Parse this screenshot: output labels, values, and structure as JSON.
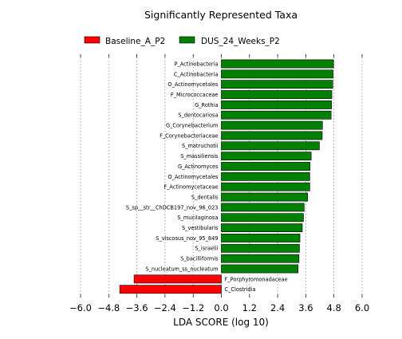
{
  "chart_data": {
    "type": "bar",
    "orientation": "horizontal",
    "title": "Significantly Represented Taxa",
    "xlabel": "LDA SCORE (log 10)",
    "ylabel": "",
    "xlim": [
      -6.0,
      6.0
    ],
    "x_ticks": [
      -6.0,
      -4.8,
      -3.6,
      -2.4,
      -1.2,
      0.0,
      1.2,
      2.4,
      3.6,
      4.8,
      6.0
    ],
    "x_tick_labels": [
      "−6.0",
      "−4.8",
      "−3.6",
      "−2.4",
      "−1.2",
      "0.0",
      "1.2",
      "2.4",
      "3.6",
      "4.8",
      "6.0"
    ],
    "grid": "vertical dotted",
    "legend_position": "top-left",
    "legend": [
      {
        "label": "Baseline_A_P2",
        "color": "#ff0000"
      },
      {
        "label": "DUS_24_Weeks_P2",
        "color": "#008000"
      }
    ],
    "bars": [
      {
        "label": "P_Actinobacteria",
        "value": 4.78,
        "group": 1
      },
      {
        "label": "C_Actinobacteria",
        "value": 4.76,
        "group": 1
      },
      {
        "label": "O_Actinomycetales",
        "value": 4.75,
        "group": 1
      },
      {
        "label": "F_Micrococcaceae",
        "value": 4.71,
        "group": 1
      },
      {
        "label": "G_Rothia",
        "value": 4.7,
        "group": 1
      },
      {
        "label": "S_dentocariosa",
        "value": 4.68,
        "group": 1
      },
      {
        "label": "G_Corynebacterium",
        "value": 4.31,
        "group": 1
      },
      {
        "label": "F_Corynebacteriaceae",
        "value": 4.3,
        "group": 1
      },
      {
        "label": "S_matruchotii",
        "value": 4.18,
        "group": 1
      },
      {
        "label": "S_massiliensis",
        "value": 3.83,
        "group": 1
      },
      {
        "label": "G_Actinomyces",
        "value": 3.78,
        "group": 1
      },
      {
        "label": "O_Actinomycetales",
        "value": 3.77,
        "group": 1
      },
      {
        "label": "F_Actinomycetaceae",
        "value": 3.77,
        "group": 1
      },
      {
        "label": "S_dentalis",
        "value": 3.68,
        "group": 1
      },
      {
        "label": "S_sp__str__ChDCB197_nov_96_023",
        "value": 3.53,
        "group": 1
      },
      {
        "label": "S_mucilaginosa",
        "value": 3.5,
        "group": 1
      },
      {
        "label": "S_vestibularis",
        "value": 3.45,
        "group": 1
      },
      {
        "label": "S_viscosus_nov_95_849",
        "value": 3.35,
        "group": 1
      },
      {
        "label": "S_israelii",
        "value": 3.33,
        "group": 1
      },
      {
        "label": "S_bacilliformis",
        "value": 3.31,
        "group": 1
      },
      {
        "label": "S_nucleatum_ss_nucleatum",
        "value": 3.27,
        "group": 1
      },
      {
        "label": "F_Porphyromonadaceae",
        "value": -3.72,
        "group": 0
      },
      {
        "label": "C_Clostridia",
        "value": -4.33,
        "group": 0
      }
    ]
  }
}
